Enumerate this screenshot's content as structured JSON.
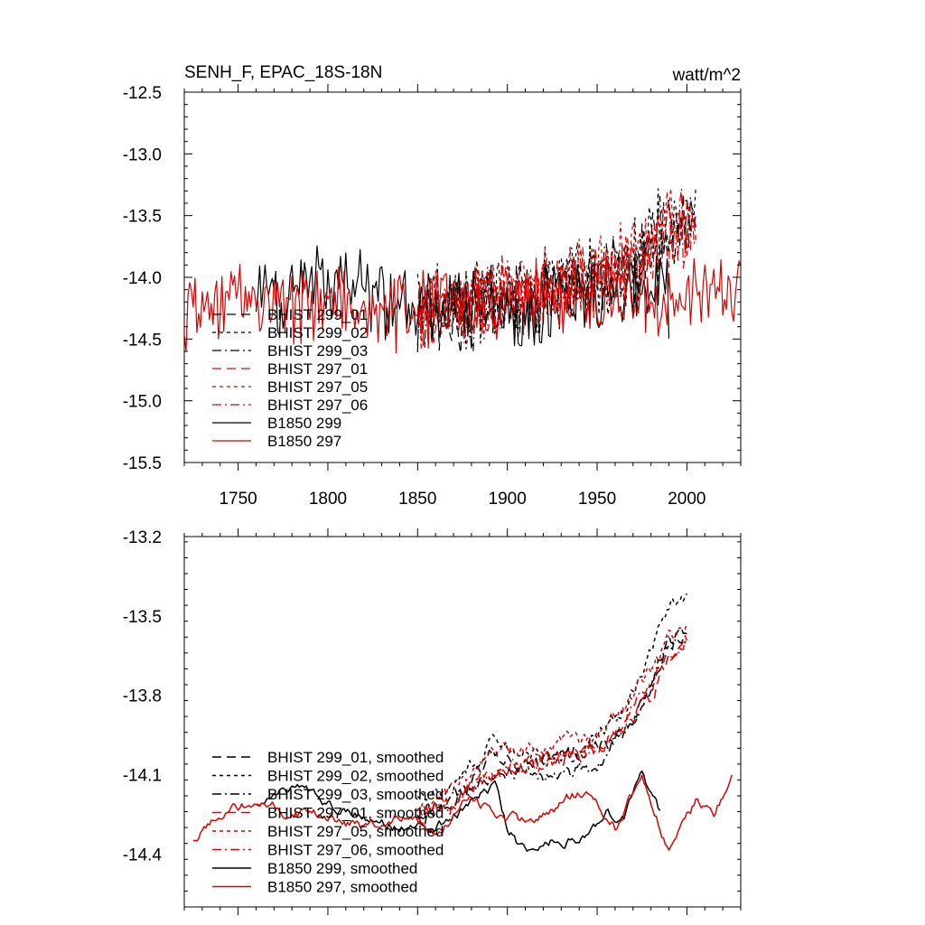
{
  "chart_data": [
    {
      "type": "line",
      "title": "SENH_F, EPAC_18S-18N",
      "units": "watt/m^2",
      "xlim": [
        1720,
        2030
      ],
      "ylim": [
        -15.5,
        -12.5
      ],
      "xticks": [
        1750,
        1800,
        1850,
        1900,
        1950,
        2000
      ],
      "xtick_labels": [
        "1750",
        "1800",
        "1850",
        "1900",
        "1950",
        "2000"
      ],
      "yticks": [
        -15.5,
        -15.0,
        -14.5,
        -14.0,
        -13.5,
        -13.0,
        -12.5
      ],
      "ytick_labels": [
        "-15.5",
        "-15.0",
        "-14.5",
        "-14.0",
        "-13.5",
        "-13.0",
        "-12.5"
      ],
      "grid": false,
      "legend_position": "lower-left",
      "series": [
        {
          "name": "BHIST 299_01",
          "color": "#000000",
          "dash": "long-dash",
          "x_range": [
            1850,
            2005
          ],
          "anchors": [
            [
              1850,
              -14.3
            ],
            [
              1870,
              -14.3
            ],
            [
              1900,
              -14.15
            ],
            [
              1930,
              -14.1
            ],
            [
              1950,
              -14.0
            ],
            [
              1970,
              -13.9
            ],
            [
              1990,
              -13.6
            ],
            [
              2005,
              -13.55
            ]
          ],
          "noise": 0.28
        },
        {
          "name": "BHIST 299_02",
          "color": "#000000",
          "dash": "short-dash",
          "x_range": [
            1850,
            2005
          ],
          "anchors": [
            [
              1850,
              -14.25
            ],
            [
              1870,
              -14.25
            ],
            [
              1900,
              -14.15
            ],
            [
              1930,
              -14.05
            ],
            [
              1950,
              -14.0
            ],
            [
              1970,
              -13.85
            ],
            [
              1990,
              -13.55
            ],
            [
              2005,
              -13.5
            ]
          ],
          "noise": 0.3
        },
        {
          "name": "BHIST 299_03",
          "color": "#000000",
          "dash": "dash-dot",
          "x_range": [
            1850,
            2005
          ],
          "anchors": [
            [
              1850,
              -14.3
            ],
            [
              1870,
              -14.3
            ],
            [
              1900,
              -14.2
            ],
            [
              1930,
              -14.1
            ],
            [
              1950,
              -14.05
            ],
            [
              1970,
              -13.9
            ],
            [
              1990,
              -13.6
            ],
            [
              2005,
              -13.6
            ]
          ],
          "noise": 0.27
        },
        {
          "name": "BHIST 297_01",
          "color": "#e00000",
          "dash": "long-dash",
          "x_range": [
            1850,
            2005
          ],
          "anchors": [
            [
              1850,
              -14.3
            ],
            [
              1870,
              -14.25
            ],
            [
              1900,
              -14.15
            ],
            [
              1930,
              -14.1
            ],
            [
              1950,
              -14.0
            ],
            [
              1970,
              -13.85
            ],
            [
              1990,
              -13.65
            ],
            [
              2005,
              -13.55
            ]
          ],
          "noise": 0.25
        },
        {
          "name": "BHIST 297_05",
          "color": "#e00000",
          "dash": "short-dash",
          "x_range": [
            1850,
            2005
          ],
          "anchors": [
            [
              1850,
              -14.3
            ],
            [
              1870,
              -14.25
            ],
            [
              1900,
              -14.1
            ],
            [
              1930,
              -14.05
            ],
            [
              1950,
              -13.95
            ],
            [
              1970,
              -13.8
            ],
            [
              1990,
              -13.6
            ],
            [
              2005,
              -13.5
            ]
          ],
          "noise": 0.26
        },
        {
          "name": "BHIST 297_06",
          "color": "#e00000",
          "dash": "dash-dot",
          "x_range": [
            1850,
            2005
          ],
          "anchors": [
            [
              1850,
              -14.3
            ],
            [
              1870,
              -14.25
            ],
            [
              1900,
              -14.15
            ],
            [
              1930,
              -14.1
            ],
            [
              1950,
              -14.0
            ],
            [
              1970,
              -13.85
            ],
            [
              1990,
              -13.65
            ],
            [
              2005,
              -13.55
            ]
          ],
          "noise": 0.26
        },
        {
          "name": "B1850 299",
          "color": "#000000",
          "dash": "solid",
          "x_range": [
            1760,
            1990
          ],
          "anchors": [
            [
              1760,
              -14.2
            ],
            [
              1800,
              -14.1
            ],
            [
              1830,
              -14.15
            ],
            [
              1860,
              -14.25
            ],
            [
              1890,
              -14.3
            ],
            [
              1920,
              -14.2
            ],
            [
              1950,
              -14.15
            ],
            [
              1970,
              -14.1
            ],
            [
              1990,
              -14.2
            ]
          ],
          "noise": 0.28
        },
        {
          "name": "B1850 297",
          "color": "#e00000",
          "dash": "solid",
          "x_range": [
            1720,
            2030
          ],
          "anchors": [
            [
              1720,
              -14.3
            ],
            [
              1760,
              -14.2
            ],
            [
              1800,
              -14.2
            ],
            [
              1850,
              -14.25
            ],
            [
              1880,
              -14.2
            ],
            [
              1920,
              -14.2
            ],
            [
              1960,
              -14.15
            ],
            [
              1990,
              -14.2
            ],
            [
              2030,
              -14.1
            ]
          ],
          "noise": 0.28
        }
      ]
    },
    {
      "type": "line",
      "title": "",
      "xlim": [
        1720,
        2030
      ],
      "ylim": [
        -14.6,
        -13.2
      ],
      "xticks": [
        1750,
        1800,
        1850,
        1900,
        1950,
        2000
      ],
      "yticks": [
        -14.4,
        -14.1,
        -13.8,
        -13.5,
        -13.2
      ],
      "ytick_labels": [
        "-14.4",
        "-14.1",
        "-13.8",
        "-13.5",
        "-13.2"
      ],
      "grid": false,
      "legend_position": "lower-left",
      "series": [
        {
          "name": "BHIST 299_01, smoothed",
          "color": "#000000",
          "dash": "long-dash",
          "x_range": [
            1850,
            2000
          ],
          "anchors": [
            [
              1850,
              -14.25
            ],
            [
              1870,
              -14.2
            ],
            [
              1890,
              -14.05
            ],
            [
              1910,
              -14.05
            ],
            [
              1930,
              -14.05
            ],
            [
              1950,
              -14.0
            ],
            [
              1965,
              -13.95
            ],
            [
              1980,
              -13.75
            ],
            [
              1990,
              -13.6
            ],
            [
              2000,
              -13.55
            ]
          ],
          "noise": 0.04
        },
        {
          "name": "BHIST 299_02, smoothed",
          "color": "#000000",
          "dash": "short-dash",
          "x_range": [
            1850,
            2000
          ],
          "anchors": [
            [
              1850,
              -14.2
            ],
            [
              1870,
              -14.15
            ],
            [
              1890,
              -14.0
            ],
            [
              1910,
              -14.0
            ],
            [
              1930,
              -14.05
            ],
            [
              1950,
              -13.95
            ],
            [
              1965,
              -13.85
            ],
            [
              1980,
              -13.65
            ],
            [
              1990,
              -13.45
            ],
            [
              2000,
              -13.45
            ]
          ],
          "noise": 0.04
        },
        {
          "name": "BHIST 299_03, smoothed",
          "color": "#000000",
          "dash": "dash-dot",
          "x_range": [
            1850,
            2000
          ],
          "anchors": [
            [
              1850,
              -14.25
            ],
            [
              1870,
              -14.2
            ],
            [
              1890,
              -14.1
            ],
            [
              1910,
              -14.1
            ],
            [
              1930,
              -14.1
            ],
            [
              1950,
              -14.05
            ],
            [
              1965,
              -13.95
            ],
            [
              1980,
              -13.75
            ],
            [
              1990,
              -13.6
            ],
            [
              2000,
              -13.6
            ]
          ],
          "noise": 0.04
        },
        {
          "name": "BHIST 297_01, smoothed",
          "color": "#e00000",
          "dash": "long-dash",
          "x_range": [
            1850,
            2000
          ],
          "anchors": [
            [
              1850,
              -14.25
            ],
            [
              1870,
              -14.2
            ],
            [
              1890,
              -14.1
            ],
            [
              1910,
              -14.05
            ],
            [
              1930,
              -14.05
            ],
            [
              1950,
              -14.0
            ],
            [
              1965,
              -13.9
            ],
            [
              1980,
              -13.8
            ],
            [
              1990,
              -13.65
            ],
            [
              2000,
              -13.6
            ]
          ],
          "noise": 0.04
        },
        {
          "name": "BHIST 297_05, smoothed",
          "color": "#e00000",
          "dash": "short-dash",
          "x_range": [
            1850,
            2000
          ],
          "anchors": [
            [
              1850,
              -14.25
            ],
            [
              1870,
              -14.15
            ],
            [
              1890,
              -14.05
            ],
            [
              1910,
              -14.0
            ],
            [
              1930,
              -14.0
            ],
            [
              1950,
              -13.95
            ],
            [
              1965,
              -13.85
            ],
            [
              1980,
              -13.7
            ],
            [
              1990,
              -13.6
            ],
            [
              2000,
              -13.55
            ]
          ],
          "noise": 0.04
        },
        {
          "name": "BHIST 297_06, smoothed",
          "color": "#e00000",
          "dash": "dash-dot",
          "x_range": [
            1850,
            2000
          ],
          "anchors": [
            [
              1850,
              -14.25
            ],
            [
              1870,
              -14.2
            ],
            [
              1890,
              -14.1
            ],
            [
              1910,
              -14.05
            ],
            [
              1930,
              -14.05
            ],
            [
              1950,
              -14.0
            ],
            [
              1965,
              -13.9
            ],
            [
              1980,
              -13.75
            ],
            [
              1990,
              -13.65
            ],
            [
              2000,
              -13.6
            ]
          ],
          "noise": 0.04
        },
        {
          "name": "B1850 299, smoothed",
          "color": "#000000",
          "dash": "solid",
          "x_range": [
            1760,
            1985
          ],
          "anchors": [
            [
              1760,
              -14.2
            ],
            [
              1780,
              -14.15
            ],
            [
              1800,
              -14.2
            ],
            [
              1820,
              -14.25
            ],
            [
              1840,
              -14.3
            ],
            [
              1860,
              -14.3
            ],
            [
              1880,
              -14.2
            ],
            [
              1893,
              -14.15
            ],
            [
              1900,
              -14.3
            ],
            [
              1910,
              -14.4
            ],
            [
              1925,
              -14.35
            ],
            [
              1940,
              -14.35
            ],
            [
              1955,
              -14.25
            ],
            [
              1965,
              -14.25
            ],
            [
              1975,
              -14.1
            ],
            [
              1985,
              -14.25
            ]
          ],
          "noise": 0.025
        },
        {
          "name": "B1850 297, smoothed",
          "color": "#e00000",
          "dash": "solid",
          "x_range": [
            1725,
            2025
          ],
          "anchors": [
            [
              1725,
              -14.35
            ],
            [
              1740,
              -14.25
            ],
            [
              1760,
              -14.2
            ],
            [
              1780,
              -14.25
            ],
            [
              1800,
              -14.25
            ],
            [
              1820,
              -14.3
            ],
            [
              1840,
              -14.25
            ],
            [
              1860,
              -14.3
            ],
            [
              1880,
              -14.2
            ],
            [
              1900,
              -14.25
            ],
            [
              1915,
              -14.3
            ],
            [
              1930,
              -14.2
            ],
            [
              1945,
              -14.15
            ],
            [
              1960,
              -14.3
            ],
            [
              1975,
              -14.1
            ],
            [
              1990,
              -14.4
            ],
            [
              2005,
              -14.2
            ],
            [
              2015,
              -14.25
            ],
            [
              2025,
              -14.1
            ]
          ],
          "noise": 0.025
        }
      ]
    }
  ]
}
